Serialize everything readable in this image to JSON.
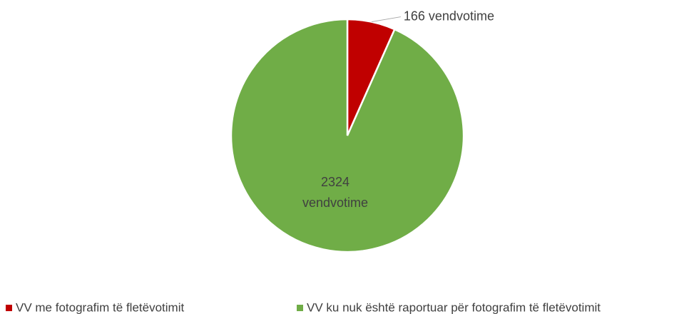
{
  "chart_data": {
    "type": "pie",
    "categories": [
      "VV me fotografim të fletëvotimit",
      "VV ku nuk është raportuar për fotografim të fletëvotimit"
    ],
    "values": [
      166,
      2324
    ],
    "value_labels": [
      "166 vendvotime",
      "2324 vendvotime"
    ],
    "colors": [
      "#c00000",
      "#70ad47"
    ],
    "legend": "bottom"
  }
}
